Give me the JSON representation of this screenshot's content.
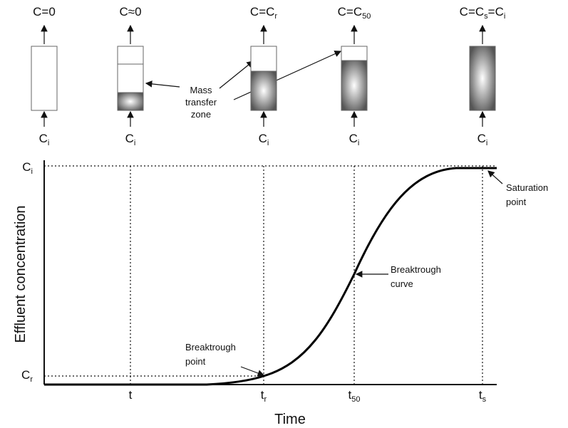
{
  "columns": [
    {
      "top": [
        "C=0"
      ],
      "bottom": [
        "C",
        "i"
      ]
    },
    {
      "top": [
        "C≈0"
      ],
      "bottom": [
        "C",
        "i"
      ]
    },
    {
      "top": [
        "C=C",
        "r"
      ],
      "bottom": [
        "C",
        "i"
      ]
    },
    {
      "top": [
        "C=C",
        "50"
      ],
      "bottom": [
        "C",
        "i"
      ]
    },
    {
      "top": [
        "C=C",
        "s",
        "=C",
        "i"
      ],
      "bottom": [
        "C",
        "i"
      ]
    }
  ],
  "zone_note": [
    "Mass",
    "transfer",
    "zone"
  ],
  "graph": {
    "y_label": "Effluent concentration",
    "x_label": "Time",
    "y_levels": [
      [
        "C",
        "i"
      ],
      [
        "C",
        "r"
      ]
    ],
    "x_ticks": [
      [
        "t"
      ],
      [
        "t",
        "r"
      ],
      [
        "t",
        "50"
      ],
      [
        "t",
        "s"
      ]
    ],
    "notes": {
      "saturation": [
        "Saturation",
        "point"
      ],
      "curve": [
        "Breaktrough",
        "curve"
      ],
      "point": [
        "Breaktrough",
        "point"
      ]
    }
  }
}
